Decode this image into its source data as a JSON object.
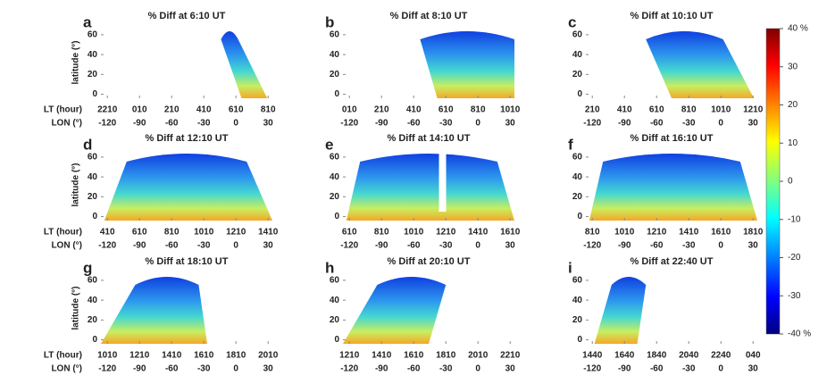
{
  "chart_data": [
    {
      "type": "heatmap",
      "panel": "a",
      "title": "% Diff at 6:10 UT",
      "xlim": [
        -126,
        34
      ],
      "ylim": [
        -4,
        68
      ],
      "xticks": [
        -120,
        -90,
        -60,
        -30,
        0,
        30
      ],
      "yticks": [
        0,
        20,
        40,
        60
      ],
      "lt_labels": [
        "2210",
        "010",
        "210",
        "410",
        "610",
        "810"
      ]
    },
    {
      "type": "heatmap",
      "panel": "b",
      "title": "% Diff at 8:10 UT",
      "xlim": [
        -126,
        34
      ],
      "ylim": [
        -4,
        68
      ],
      "xticks": [
        -120,
        -90,
        -60,
        -30,
        0,
        30
      ],
      "yticks": [
        0,
        20,
        40,
        60
      ],
      "lt_labels": [
        "010",
        "210",
        "410",
        "610",
        "810",
        "1010"
      ]
    },
    {
      "type": "heatmap",
      "panel": "c",
      "title": "% Diff at 10:10 UT",
      "xlim": [
        -126,
        34
      ],
      "ylim": [
        -4,
        68
      ],
      "xticks": [
        -120,
        -90,
        -60,
        -30,
        0,
        30
      ],
      "yticks": [
        0,
        20,
        40,
        60
      ],
      "lt_labels": [
        "210",
        "410",
        "610",
        "810",
        "1010",
        "1210"
      ]
    },
    {
      "type": "heatmap",
      "panel": "d",
      "title": "% Diff at 12:10 UT",
      "xlim": [
        -126,
        34
      ],
      "ylim": [
        -4,
        68
      ],
      "xticks": [
        -120,
        -90,
        -60,
        -30,
        0,
        30
      ],
      "yticks": [
        0,
        20,
        40,
        60
      ],
      "lt_labels": [
        "410",
        "610",
        "810",
        "1010",
        "1210",
        "1410"
      ]
    },
    {
      "type": "heatmap",
      "panel": "e",
      "title": "% Diff at 14:10 UT",
      "xlim": [
        -126,
        34
      ],
      "ylim": [
        -4,
        68
      ],
      "xticks": [
        -120,
        -90,
        -60,
        -30,
        0,
        30
      ],
      "yticks": [
        0,
        20,
        40,
        60
      ],
      "lt_labels": [
        "610",
        "810",
        "1010",
        "1210",
        "1410",
        "1610"
      ]
    },
    {
      "type": "heatmap",
      "panel": "f",
      "title": "% Diff at 16:10 UT",
      "xlim": [
        -126,
        34
      ],
      "ylim": [
        -4,
        68
      ],
      "xticks": [
        -120,
        -90,
        -60,
        -30,
        0,
        30
      ],
      "yticks": [
        0,
        20,
        40,
        60
      ],
      "lt_labels": [
        "810",
        "1010",
        "1210",
        "1410",
        "1610",
        "1810"
      ]
    },
    {
      "type": "heatmap",
      "panel": "g",
      "title": "% Diff at 18:10 UT",
      "xlim": [
        -126,
        34
      ],
      "ylim": [
        -4,
        68
      ],
      "xticks": [
        -120,
        -90,
        -60,
        -30,
        0,
        30
      ],
      "yticks": [
        0,
        20,
        40,
        60
      ],
      "lt_labels": [
        "1010",
        "1210",
        "1410",
        "1610",
        "1810",
        "2010"
      ]
    },
    {
      "type": "heatmap",
      "panel": "h",
      "title": "% Diff at 20:10 UT",
      "xlim": [
        -126,
        34
      ],
      "ylim": [
        -4,
        68
      ],
      "xticks": [
        -120,
        -90,
        -60,
        -30,
        0,
        30
      ],
      "yticks": [
        0,
        20,
        40,
        60
      ],
      "lt_labels": [
        "1210",
        "1410",
        "1610",
        "1810",
        "2010",
        "2210"
      ]
    },
    {
      "type": "heatmap",
      "panel": "i",
      "title": "% Diff at 22:40 UT",
      "xlim": [
        -126,
        34
      ],
      "ylim": [
        -4,
        68
      ],
      "xticks": [
        -120,
        -90,
        -60,
        -30,
        0,
        30
      ],
      "yticks": [
        0,
        20,
        40,
        60
      ],
      "lt_labels": [
        "1440",
        "1640",
        "1840",
        "2040",
        "2240",
        "040"
      ]
    }
  ],
  "axis_labels": {
    "latitude": "latitude (°)",
    "lt": "LT (hour)",
    "lon": "LON (°)"
  },
  "colorbar": {
    "clim": [
      -40,
      40
    ],
    "ticks": [
      {
        "value": 40,
        "label": "40 %"
      },
      30,
      20,
      10,
      0,
      -10,
      -20,
      -30,
      {
        "value": -40,
        "label": "-40 %"
      }
    ]
  }
}
